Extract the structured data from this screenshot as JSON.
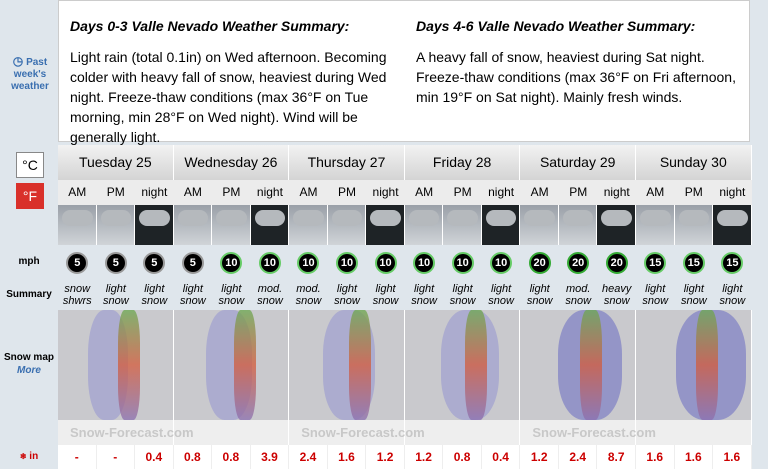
{
  "sidebar": {
    "past_weather": "Past week's weather",
    "celsius": "°C",
    "fahrenheit": "°F",
    "wind_unit": "mph",
    "summary_label": "Summary",
    "snow_map_label": "Snow map",
    "more": "More",
    "snow_unit": "in"
  },
  "summaries": [
    {
      "title": "Days 0-3 Valle Nevado Weather Summary:",
      "text": "Light rain (total 0.1in) on Wed afternoon. Becoming colder with heavy fall of snow, heaviest during Wed night. Freeze-thaw conditions (max 36°F on Tue morning, min 28°F on Wed night). Wind will be generally light."
    },
    {
      "title": "Days 4-6 Valle Nevado Weather Summary:",
      "text": "A heavy fall of snow, heaviest during Sat night. Freeze-thaw conditions (max 36°F on Fri afternoon, min 19°F on Sat night). Mainly fresh winds."
    }
  ],
  "days": [
    "Tuesday 25",
    "Wednesday 26",
    "Thursday 27",
    "Friday 28",
    "Saturday 29",
    "Sunday 30"
  ],
  "periods": [
    "AM",
    "PM",
    "night"
  ],
  "wind": [
    5,
    5,
    5,
    5,
    10,
    10,
    10,
    10,
    10,
    10,
    10,
    10,
    20,
    20,
    20,
    15,
    15,
    15
  ],
  "summary": [
    [
      "snow",
      "shwrs"
    ],
    [
      "light",
      "snow"
    ],
    [
      "light",
      "snow"
    ],
    [
      "light",
      "snow"
    ],
    [
      "light",
      "snow"
    ],
    [
      "mod.",
      "snow"
    ],
    [
      "mod.",
      "snow"
    ],
    [
      "light",
      "snow"
    ],
    [
      "light",
      "snow"
    ],
    [
      "light",
      "snow"
    ],
    [
      "light",
      "snow"
    ],
    [
      "light",
      "snow"
    ],
    [
      "light",
      "snow"
    ],
    [
      "mod.",
      "snow"
    ],
    [
      "heavy",
      "snow"
    ],
    [
      "light",
      "snow"
    ],
    [
      "light",
      "snow"
    ],
    [
      "light",
      "snow"
    ]
  ],
  "watermark": "Snow-Forecast.com",
  "snow": [
    "-",
    "-",
    0.4,
    0.8,
    0.8,
    3.9,
    2.4,
    1.6,
    1.2,
    1.2,
    0.8,
    0.4,
    1.2,
    2.4,
    8.7,
    1.6,
    1.6,
    1.6
  ]
}
